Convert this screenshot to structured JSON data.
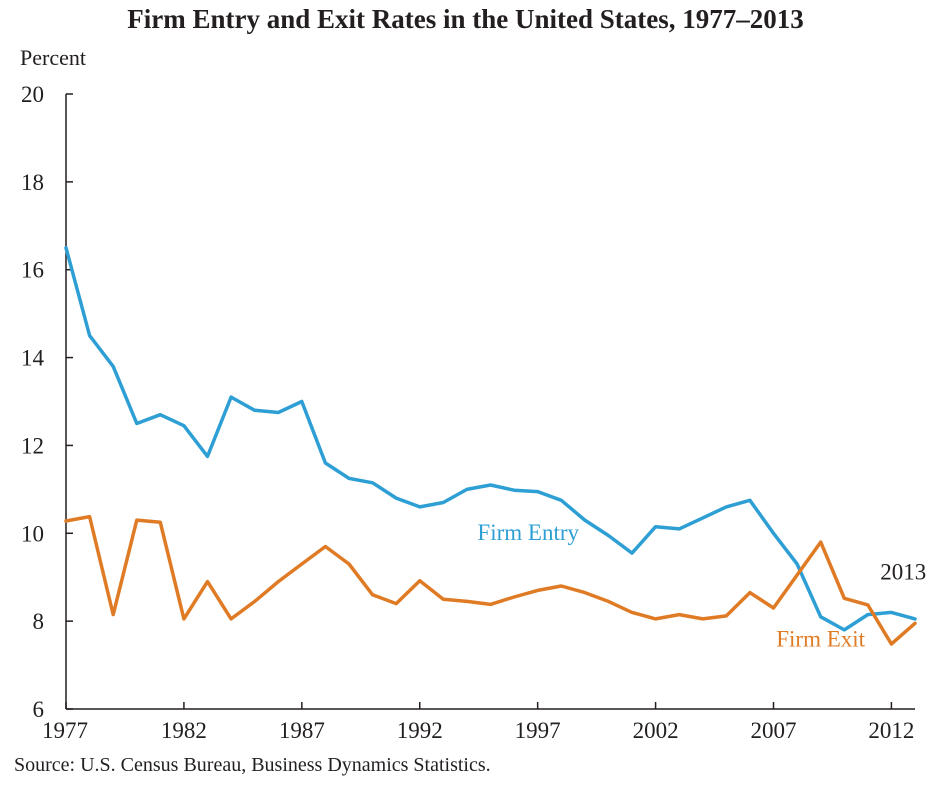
{
  "chart_data": {
    "type": "line",
    "title": "Firm Entry and Exit Rates in the United States, 1977–2013",
    "ylabel": "Percent",
    "xlabel": "",
    "ylim": [
      6,
      20
    ],
    "xlim": [
      1977,
      2013
    ],
    "yticks": [
      "6",
      "8",
      "10",
      "12",
      "14",
      "16",
      "18",
      "20"
    ],
    "xticks": [
      "1977",
      "1982",
      "1987",
      "1992",
      "1997",
      "2002",
      "2007",
      "2012"
    ],
    "grid": false,
    "x": [
      1977,
      1978,
      1979,
      1980,
      1981,
      1982,
      1983,
      1984,
      1985,
      1986,
      1987,
      1988,
      1989,
      1990,
      1991,
      1992,
      1993,
      1994,
      1995,
      1996,
      1997,
      1998,
      1999,
      2000,
      2001,
      2002,
      2003,
      2004,
      2005,
      2006,
      2007,
      2008,
      2009,
      2010,
      2011,
      2012,
      2013
    ],
    "series": [
      {
        "name": "Firm Entry",
        "color": "#2e9fd4",
        "values": [
          16.5,
          14.5,
          13.8,
          12.5,
          12.7,
          12.45,
          11.75,
          13.1,
          12.8,
          12.75,
          13.0,
          11.6,
          11.25,
          11.15,
          10.8,
          10.6,
          10.7,
          11.0,
          11.1,
          10.98,
          10.95,
          10.75,
          10.3,
          9.95,
          9.55,
          10.15,
          10.1,
          10.35,
          10.6,
          10.75,
          10.0,
          9.3,
          8.1,
          7.8,
          8.15,
          8.2,
          8.05
        ]
      },
      {
        "name": "Firm Exit",
        "color": "#e07b25",
        "values": [
          10.28,
          10.38,
          8.15,
          10.3,
          10.25,
          8.05,
          8.9,
          8.05,
          8.45,
          8.9,
          9.3,
          9.7,
          9.3,
          8.6,
          8.4,
          8.92,
          8.5,
          8.45,
          8.38,
          8.55,
          8.7,
          8.8,
          8.65,
          8.45,
          8.2,
          8.05,
          8.15,
          8.05,
          8.12,
          8.65,
          8.3,
          9.05,
          9.8,
          8.52,
          8.37,
          7.48,
          7.95
        ]
      }
    ],
    "annotations": [
      {
        "text": "Firm Entry",
        "color": "#2e9fd4",
        "x": 1996.6,
        "y": 9.85
      },
      {
        "text": "Firm Exit",
        "color": "#e07b25",
        "x": 2009.0,
        "y": 7.42
      },
      {
        "text": "2013",
        "color": "#231f20",
        "x": 2012.5,
        "y": 8.95
      }
    ],
    "source": "Source: U.S. Census Bureau, Business Dynamics Statistics."
  }
}
